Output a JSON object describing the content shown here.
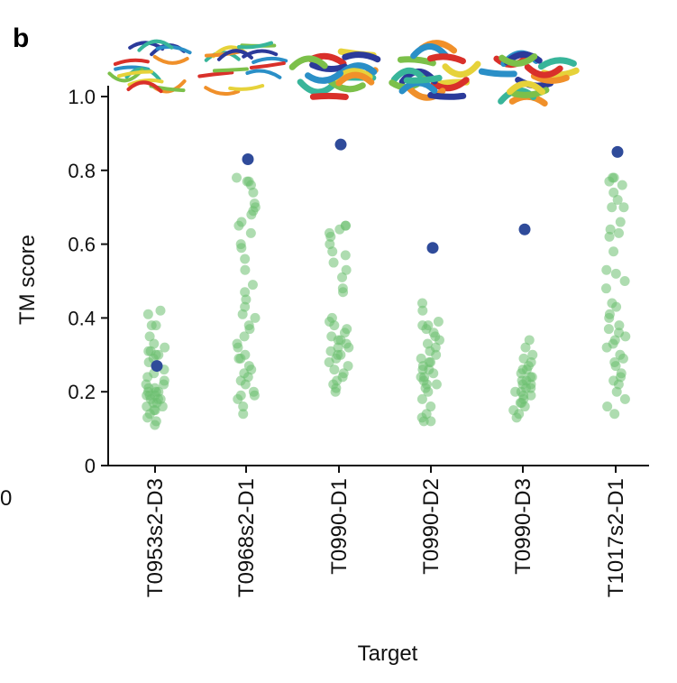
{
  "panel_label": "b",
  "stray_text": "0",
  "colors": {
    "predicted": "#2f4b9a",
    "others": "#6cbf6f"
  },
  "chart_data": {
    "type": "scatter",
    "title": "",
    "xlabel": "Target",
    "ylabel": "TM score",
    "ylim": [
      0,
      1.0
    ],
    "yticks": [
      "0",
      "0.2",
      "0.4",
      "0.6",
      "0.8",
      "1.0"
    ],
    "grid": false,
    "categories": [
      "T0953s2-D3",
      "T0968s2-D1",
      "T0990-D1",
      "T0990-D2",
      "T0990-D3",
      "T1017s2-D1"
    ],
    "highlight_values": [
      0.27,
      0.83,
      0.87,
      0.59,
      0.64,
      0.85
    ],
    "group_values": [
      [
        0.11,
        0.12,
        0.13,
        0.14,
        0.15,
        0.15,
        0.16,
        0.16,
        0.17,
        0.17,
        0.18,
        0.18,
        0.18,
        0.19,
        0.19,
        0.19,
        0.2,
        0.2,
        0.2,
        0.21,
        0.21,
        0.22,
        0.22,
        0.23,
        0.24,
        0.25,
        0.26,
        0.28,
        0.29,
        0.3,
        0.3,
        0.31,
        0.31,
        0.32,
        0.33,
        0.35,
        0.38,
        0.38,
        0.41,
        0.42
      ],
      [
        0.14,
        0.16,
        0.18,
        0.19,
        0.19,
        0.2,
        0.22,
        0.23,
        0.24,
        0.25,
        0.26,
        0.27,
        0.29,
        0.29,
        0.3,
        0.32,
        0.33,
        0.35,
        0.37,
        0.38,
        0.4,
        0.41,
        0.43,
        0.45,
        0.47,
        0.49,
        0.53,
        0.56,
        0.59,
        0.6,
        0.63,
        0.65,
        0.66,
        0.68,
        0.69,
        0.7,
        0.71,
        0.74,
        0.76,
        0.77,
        0.77,
        0.78
      ],
      [
        0.2,
        0.21,
        0.22,
        0.23,
        0.24,
        0.25,
        0.26,
        0.27,
        0.28,
        0.29,
        0.3,
        0.3,
        0.31,
        0.32,
        0.32,
        0.33,
        0.34,
        0.34,
        0.35,
        0.36,
        0.37,
        0.38,
        0.39,
        0.4,
        0.47,
        0.48,
        0.51,
        0.53,
        0.55,
        0.57,
        0.58,
        0.6,
        0.62,
        0.63,
        0.64,
        0.65,
        0.65
      ],
      [
        0.12,
        0.12,
        0.13,
        0.14,
        0.16,
        0.18,
        0.2,
        0.21,
        0.22,
        0.22,
        0.23,
        0.24,
        0.24,
        0.25,
        0.26,
        0.26,
        0.27,
        0.28,
        0.28,
        0.29,
        0.3,
        0.31,
        0.32,
        0.33,
        0.34,
        0.35,
        0.36,
        0.37,
        0.38,
        0.38,
        0.39,
        0.42,
        0.44
      ],
      [
        0.13,
        0.14,
        0.15,
        0.16,
        0.17,
        0.17,
        0.18,
        0.19,
        0.19,
        0.2,
        0.2,
        0.21,
        0.21,
        0.22,
        0.22,
        0.23,
        0.23,
        0.24,
        0.24,
        0.25,
        0.26,
        0.26,
        0.27,
        0.28,
        0.29,
        0.3,
        0.32,
        0.34
      ],
      [
        0.14,
        0.16,
        0.18,
        0.2,
        0.22,
        0.23,
        0.24,
        0.25,
        0.27,
        0.28,
        0.29,
        0.3,
        0.32,
        0.33,
        0.34,
        0.35,
        0.36,
        0.37,
        0.38,
        0.4,
        0.41,
        0.43,
        0.44,
        0.48,
        0.5,
        0.52,
        0.53,
        0.58,
        0.62,
        0.63,
        0.64,
        0.66,
        0.7,
        0.7,
        0.72,
        0.74,
        0.76,
        0.77,
        0.78,
        0.78
      ]
    ]
  }
}
